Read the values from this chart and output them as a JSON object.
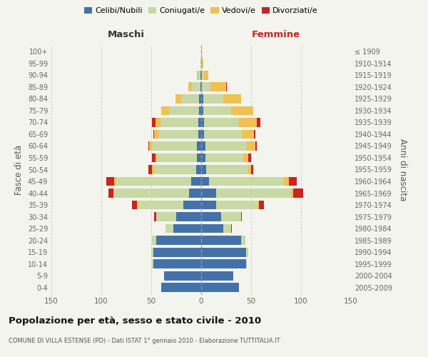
{
  "age_groups": [
    "0-4",
    "5-9",
    "10-14",
    "15-19",
    "20-24",
    "25-29",
    "30-34",
    "35-39",
    "40-44",
    "45-49",
    "50-54",
    "55-59",
    "60-64",
    "65-69",
    "70-74",
    "75-79",
    "80-84",
    "85-89",
    "90-94",
    "95-99",
    "100+"
  ],
  "birth_years": [
    "2005-2009",
    "2000-2004",
    "1995-1999",
    "1990-1994",
    "1985-1989",
    "1980-1984",
    "1975-1979",
    "1970-1974",
    "1965-1969",
    "1960-1964",
    "1955-1959",
    "1950-1954",
    "1945-1949",
    "1940-1944",
    "1935-1939",
    "1930-1934",
    "1925-1929",
    "1920-1924",
    "1915-1919",
    "1910-1914",
    "≤ 1909"
  ],
  "male": {
    "celibi": [
      40,
      37,
      48,
      48,
      45,
      28,
      25,
      18,
      12,
      10,
      5,
      4,
      4,
      3,
      3,
      2,
      2,
      1,
      1,
      0,
      0
    ],
    "coniugati": [
      0,
      0,
      1,
      2,
      4,
      8,
      20,
      45,
      75,
      75,
      42,
      40,
      45,
      40,
      38,
      30,
      18,
      8,
      2,
      1,
      0
    ],
    "vedovi": [
      0,
      0,
      0,
      0,
      0,
      0,
      0,
      1,
      1,
      2,
      2,
      2,
      3,
      4,
      5,
      8,
      6,
      4,
      1,
      0,
      0
    ],
    "divorziati": [
      0,
      0,
      0,
      0,
      0,
      0,
      2,
      5,
      5,
      8,
      4,
      3,
      1,
      1,
      3,
      0,
      0,
      0,
      0,
      0,
      0
    ]
  },
  "female": {
    "nubili": [
      38,
      32,
      45,
      45,
      40,
      22,
      20,
      15,
      15,
      8,
      5,
      4,
      4,
      3,
      3,
      2,
      2,
      1,
      1,
      0,
      0
    ],
    "coniugate": [
      0,
      0,
      1,
      2,
      4,
      8,
      20,
      42,
      75,
      75,
      42,
      38,
      42,
      38,
      35,
      28,
      20,
      8,
      2,
      1,
      0
    ],
    "vedove": [
      0,
      0,
      0,
      0,
      0,
      0,
      0,
      1,
      2,
      5,
      3,
      5,
      8,
      12,
      18,
      22,
      18,
      16,
      4,
      1,
      1
    ],
    "divorziate": [
      0,
      0,
      0,
      0,
      0,
      1,
      1,
      5,
      10,
      8,
      2,
      3,
      2,
      1,
      3,
      0,
      0,
      1,
      0,
      0,
      0
    ]
  },
  "colors": {
    "celibi": "#4472a8",
    "coniugati": "#c8d9a5",
    "vedovi": "#f0c050",
    "divorziati": "#cc2222"
  },
  "xlim": 150,
  "xticks": [
    -150,
    -100,
    -50,
    0,
    50,
    100,
    150
  ],
  "title": "Popolazione per età, sesso e stato civile - 2010",
  "subtitle": "COMUNE DI VILLA ESTENSE (PD) - Dati ISTAT 1° gennaio 2010 - Elaborazione TUTTITALIA.IT",
  "ylabel_left": "Fasce di età",
  "ylabel_right": "Anni di nascita",
  "xlabel_left": "Maschi",
  "xlabel_right": "Femmine",
  "maschi_color": "#333333",
  "femmine_color": "#cc2222",
  "bg_color": "#f4f4ee",
  "grid_color": "#cccccc",
  "tick_color": "#666666",
  "bar_height": 0.78,
  "legend_items": [
    "Celibi/Nubili",
    "Coniugati/e",
    "Vedovi/e",
    "Divorziati/e"
  ]
}
